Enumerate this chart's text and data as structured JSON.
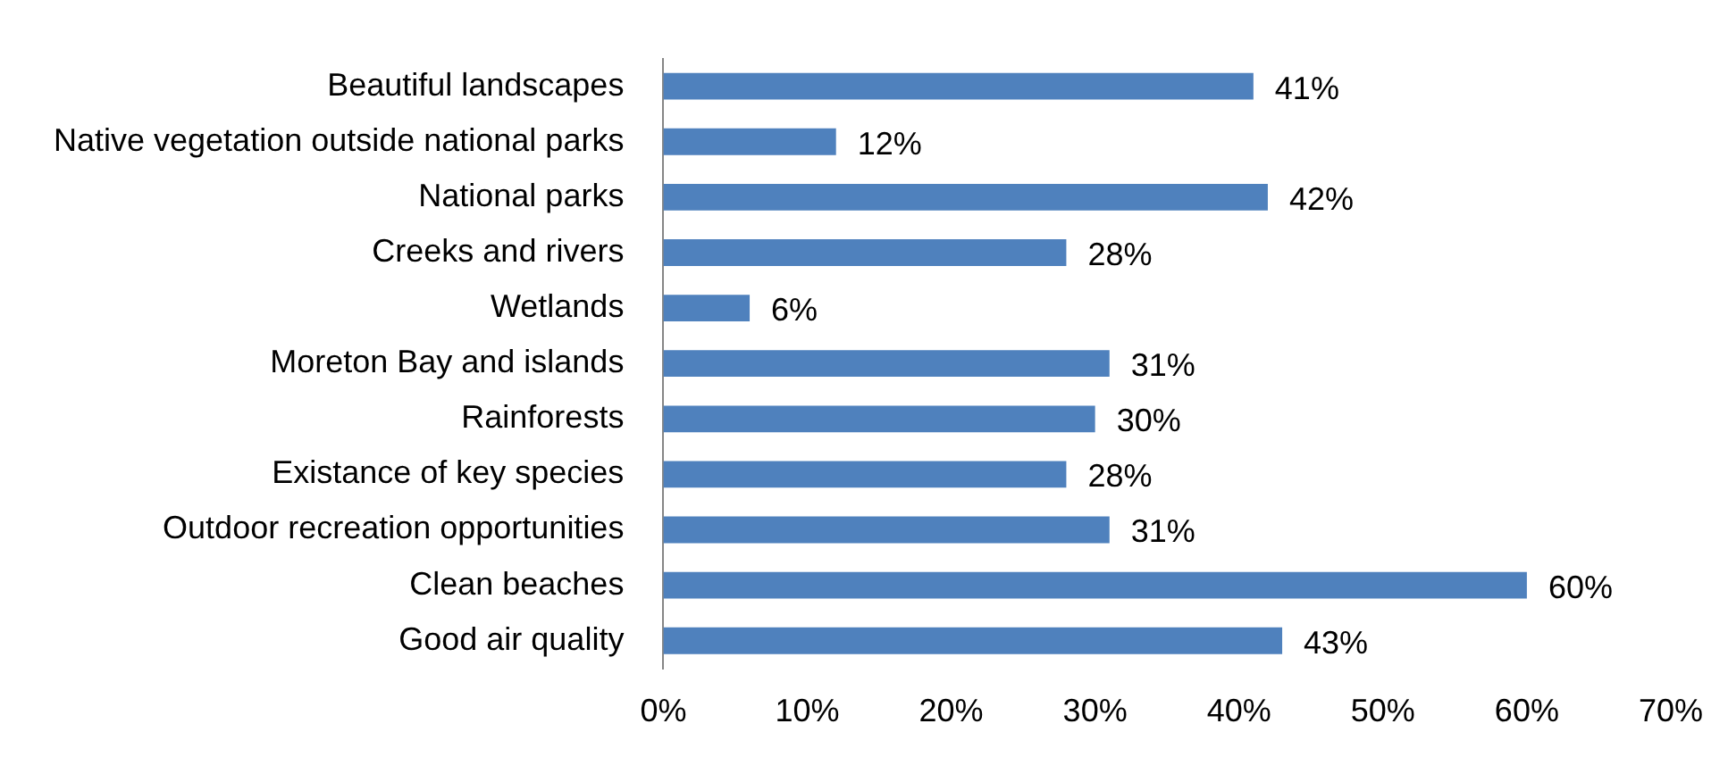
{
  "chart_data": {
    "type": "bar",
    "orientation": "horizontal",
    "categories": [
      "Beautiful landscapes",
      "Native vegetation outside national parks",
      "National parks",
      "Creeks and rivers",
      "Wetlands",
      "Moreton Bay and islands",
      "Rainforests",
      "Existance of key species",
      "Outdoor recreation opportunities",
      "Clean beaches",
      "Good air quality"
    ],
    "values": [
      41,
      12,
      42,
      28,
      6,
      31,
      30,
      28,
      31,
      60,
      43
    ],
    "value_labels": [
      "41%",
      "12%",
      "42%",
      "28%",
      "6%",
      "31%",
      "30%",
      "28%",
      "31%",
      "60%",
      "43%"
    ],
    "color": "#4f81bd",
    "xlim": [
      0,
      70
    ],
    "xticks": [
      {
        "value": 0,
        "label": "0%"
      },
      {
        "value": 10,
        "label": "10%"
      },
      {
        "value": 20,
        "label": "20%"
      },
      {
        "value": 30,
        "label": "30%"
      },
      {
        "value": 40,
        "label": "40%"
      },
      {
        "value": 50,
        "label": "50%"
      },
      {
        "value": 60,
        "label": "60%"
      },
      {
        "value": 70,
        "label": "70%"
      }
    ],
    "grid": false,
    "legend": false
  }
}
